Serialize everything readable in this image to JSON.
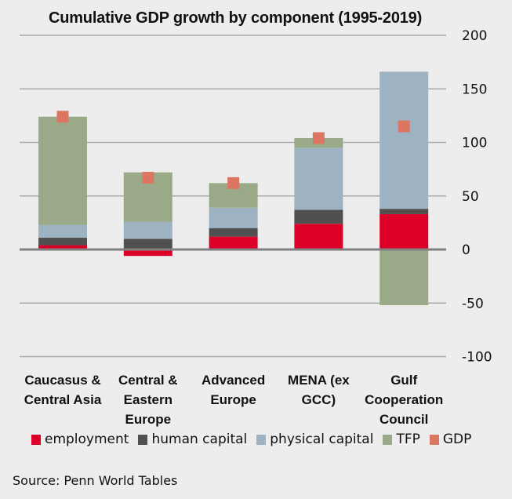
{
  "chart_data": {
    "type": "bar",
    "stacked": true,
    "title": "Cumulative GDP growth by component (1995-2019)",
    "xlabel": "",
    "ylabel": "",
    "ylim": [
      -100,
      200
    ],
    "yticks": [
      200,
      150,
      100,
      50,
      0,
      -50,
      -100
    ],
    "ytick_labels": [
      "200",
      "150",
      "100",
      "50",
      "0",
      "-50",
      "-100"
    ],
    "y_axis_position": "right",
    "grid": true,
    "legend_position": "bottom",
    "categories": [
      [
        "Caucasus &",
        "Central Asia"
      ],
      [
        "Central &",
        "Eastern",
        "Europe"
      ],
      [
        "Advanced",
        "Europe"
      ],
      [
        "MENA (ex",
        "GCC)"
      ],
      [
        "Gulf",
        "Cooperation",
        "Council"
      ]
    ],
    "series": [
      {
        "name": "employment",
        "color": "#DC0028",
        "values": [
          4,
          -6,
          12,
          24,
          33
        ]
      },
      {
        "name": "human capital",
        "color": "#505050",
        "values": [
          7,
          10,
          8,
          13,
          5
        ]
      },
      {
        "name": "physical capital",
        "color": "#9DB3C1",
        "values": [
          12,
          16,
          19,
          58,
          128
        ]
      },
      {
        "name": "TFP",
        "color": "#9AAA88",
        "values": [
          101,
          46,
          23,
          9,
          -52
        ]
      }
    ],
    "markers": {
      "name": "GDP",
      "color": "#DC7562",
      "values": [
        124,
        67,
        62,
        104,
        115
      ]
    },
    "source": "Source: Penn World Tables"
  }
}
